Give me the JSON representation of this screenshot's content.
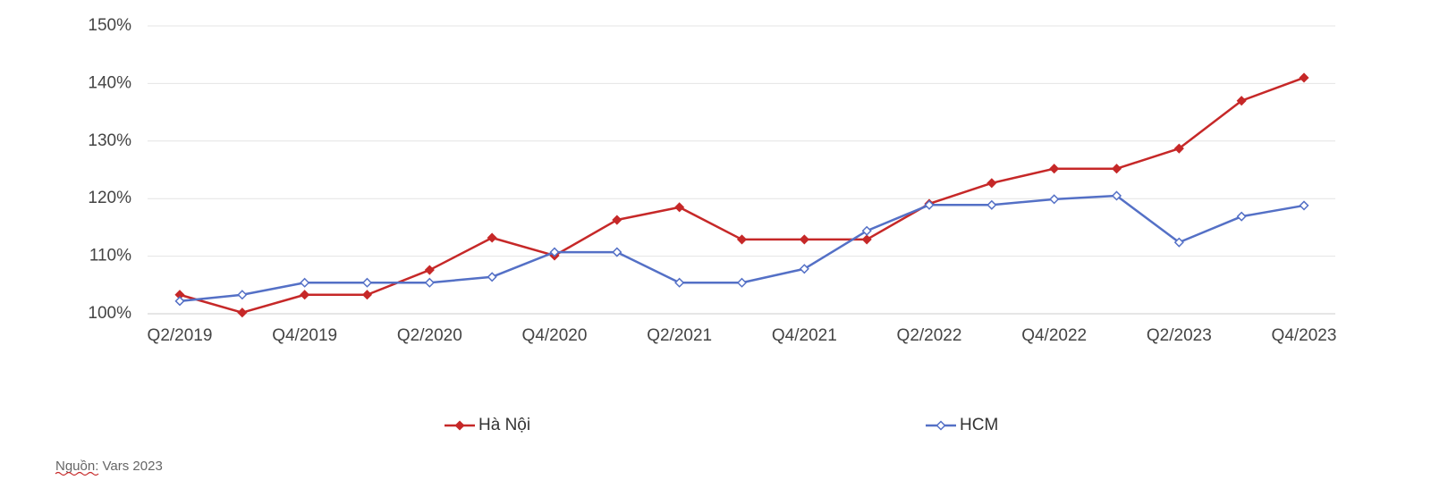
{
  "chart_data": {
    "type": "line",
    "categories": [
      "Q2/2019",
      null,
      "Q4/2019",
      null,
      "Q2/2020",
      null,
      "Q4/2020",
      null,
      "Q2/2021",
      null,
      "Q4/2021",
      null,
      "Q2/2022",
      null,
      "Q4/2022",
      null,
      "Q2/2023",
      null,
      "Q4/2023"
    ],
    "series": [
      {
        "name": "Hà Nội",
        "color": "#c62828",
        "marker_fill": "#c62828",
        "values": [
          103.3,
          100.2,
          103.3,
          103.3,
          107.6,
          113.2,
          110.1,
          116.3,
          118.5,
          112.9,
          112.9,
          112.9,
          119.1,
          122.7,
          125.2,
          125.2,
          128.7,
          137.0,
          141.0
        ]
      },
      {
        "name": "HCM",
        "color": "#5470c6",
        "marker_fill": "#ffffff",
        "values": [
          102.2,
          103.3,
          105.4,
          105.4,
          105.4,
          106.4,
          110.7,
          110.7,
          105.4,
          105.4,
          107.8,
          114.4,
          118.9,
          118.9,
          119.9,
          120.5,
          112.4,
          116.9,
          118.8
        ]
      }
    ],
    "ylim": [
      100,
      150
    ],
    "yticks": [
      {
        "value": 100,
        "label": "100%"
      },
      {
        "value": 110,
        "label": "110%"
      },
      {
        "value": 120,
        "label": "120%"
      },
      {
        "value": 130,
        "label": "130%"
      },
      {
        "value": 140,
        "label": "140%"
      },
      {
        "value": 150,
        "label": "150%"
      }
    ],
    "grid": true,
    "legend": "bottom",
    "source": "Nguồn: Vars 2023"
  }
}
